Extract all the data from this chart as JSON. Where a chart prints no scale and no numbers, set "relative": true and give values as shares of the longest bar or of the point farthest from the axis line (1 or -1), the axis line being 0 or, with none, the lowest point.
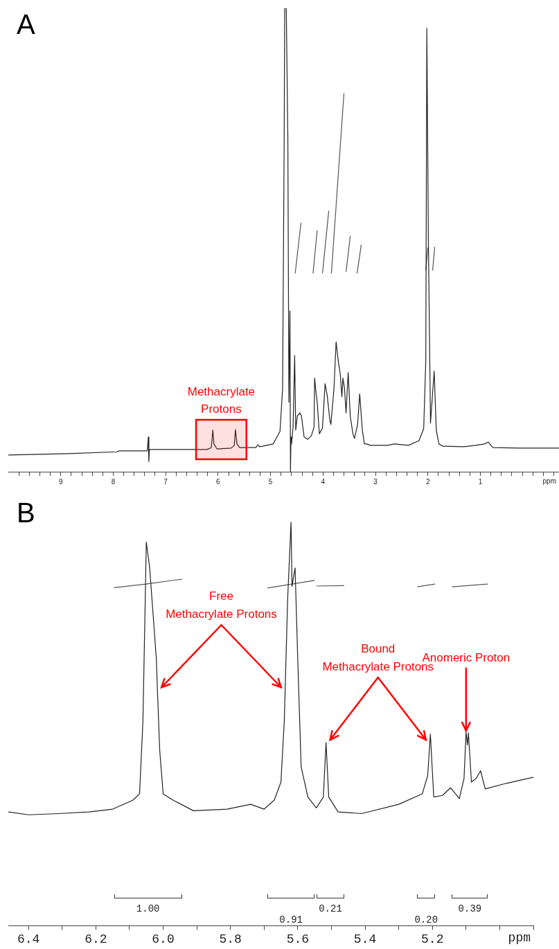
{
  "chart_data": [
    {
      "type": "line",
      "title": "A",
      "xlabel": "ppm",
      "relative": true,
      "grid": false,
      "xlim": [
        10.0,
        -0.5
      ],
      "xticks": [
        {
          "value": 9.8,
          "label": null
        },
        {
          "value": 9.6,
          "label": null
        },
        {
          "value": 9.4,
          "label": null
        },
        {
          "value": 9.2,
          "label": null
        },
        9,
        {
          "value": 8.8,
          "label": null
        },
        {
          "value": 8.6,
          "label": null
        },
        {
          "value": 8.4,
          "label": null
        },
        {
          "value": 8.2,
          "label": null
        },
        8,
        {
          "value": 7.8,
          "label": null
        },
        {
          "value": 7.6,
          "label": null
        },
        {
          "value": 7.4,
          "label": null
        },
        {
          "value": 7.2,
          "label": null
        },
        7,
        {
          "value": 6.8,
          "label": null
        },
        {
          "value": 6.6,
          "label": null
        },
        {
          "value": 6.4,
          "label": null
        },
        {
          "value": 6.2,
          "label": null
        },
        6,
        {
          "value": 5.8,
          "label": null
        },
        {
          "value": 5.6,
          "label": null
        },
        {
          "value": 5.4,
          "label": null
        },
        {
          "value": 5.2,
          "label": null
        },
        5,
        {
          "value": 4.8,
          "label": null
        },
        {
          "value": 4.6,
          "label": null
        },
        {
          "value": 4.4,
          "label": null
        },
        {
          "value": 4.2,
          "label": null
        },
        4,
        {
          "value": 3.8,
          "label": null
        },
        {
          "value": 3.6,
          "label": null
        },
        {
          "value": 3.4,
          "label": null
        },
        {
          "value": 3.2,
          "label": null
        },
        3,
        {
          "value": 2.8,
          "label": null
        },
        {
          "value": 2.6,
          "label": null
        },
        {
          "value": 2.4,
          "label": null
        },
        {
          "value": 2.2,
          "label": null
        },
        2,
        {
          "value": 1.8,
          "label": null
        },
        {
          "value": 1.6,
          "label": null
        },
        {
          "value": 1.4,
          "label": null
        },
        {
          "value": 1.2,
          "label": null
        },
        1,
        {
          "value": 0.8,
          "label": null
        },
        {
          "value": 0.6,
          "label": null
        },
        {
          "value": 0.4,
          "label": null
        },
        {
          "value": 0.2,
          "label": null
        },
        {
          "value": 0,
          "label": null
        },
        {
          "value": -0.2,
          "label": null
        },
        {
          "value": -0.4,
          "label": null
        }
      ],
      "bands": [
        {
          "axis": "x",
          "from": 6.42,
          "to": 5.46,
          "label": "Methacrylate\nProtons",
          "color": "#ff0000"
        }
      ],
      "series": [
        {
          "color": "#222222",
          "x": [
            10.0,
            8.85,
            7.93,
            7.89,
            7.35,
            7.33,
            7.32,
            7.31,
            6.47,
            6.21,
            6.13,
            6.1,
            6.08,
            6.02,
            5.75,
            5.69,
            5.67,
            5.64,
            5.59,
            5.28,
            5.24,
            5.21,
            5.15,
            4.95,
            4.82,
            4.77,
            4.74,
            4.73,
            4.7,
            4.67,
            4.65,
            4.63,
            4.62,
            4.61,
            4.6,
            4.57,
            4.54,
            4.52,
            4.49,
            4.44,
            4.41,
            4.36,
            4.29,
            4.22,
            4.17,
            4.16,
            4.13,
            4.11,
            4.07,
            4.01,
            3.96,
            3.92,
            3.87,
            3.85,
            3.79,
            3.75,
            3.71,
            3.67,
            3.64,
            3.62,
            3.59,
            3.56,
            3.52,
            3.48,
            3.43,
            3.4,
            3.34,
            3.3,
            3.25,
            3.21,
            3.17,
            3.1,
            2.77,
            2.64,
            2.37,
            2.17,
            2.08,
            2.04,
            2.02,
            1.99,
            1.95,
            1.88,
            1.84,
            1.79,
            1.71,
            1.31,
            1.09,
            0.92,
            0.85,
            0.76,
            0.26,
            -0.5
          ],
          "values": [
            0.036,
            0.039,
            0.043,
            0.045,
            0.045,
            0.075,
            0.022,
            0.048,
            0.048,
            0.048,
            0.052,
            0.09,
            0.06,
            0.049,
            0.051,
            0.057,
            0.091,
            0.06,
            0.052,
            0.052,
            0.058,
            0.054,
            0.055,
            0.06,
            0.087,
            0.18,
            0.719,
            1.0,
            1.0,
            0.719,
            0.15,
            0.347,
            0.0,
            0.075,
            0.06,
            0.097,
            0.251,
            0.09,
            0.12,
            0.127,
            0.12,
            0.075,
            0.07,
            0.078,
            0.097,
            0.202,
            0.168,
            0.15,
            0.082,
            0.094,
            0.19,
            0.165,
            0.112,
            0.102,
            0.18,
            0.28,
            0.24,
            0.21,
            0.162,
            0.202,
            0.18,
            0.127,
            0.214,
            0.12,
            0.082,
            0.072,
            0.102,
            0.168,
            0.09,
            0.06,
            0.06,
            0.057,
            0.057,
            0.06,
            0.057,
            0.067,
            0.093,
            0.24,
            0.957,
            0.494,
            0.105,
            0.217,
            0.09,
            0.06,
            0.055,
            0.054,
            0.057,
            0.06,
            0.064,
            0.052,
            0.051,
            0.051
          ]
        },
        {
          "color": "#555555",
          "x": [
            4.53,
            4.42
          ],
          "values": [
            0.428,
            0.537
          ]
        },
        {
          "color": "#555555",
          "x": [
            4.19,
            4.11
          ],
          "values": [
            0.428,
            0.521
          ]
        },
        {
          "color": "#555555",
          "x": [
            4.01,
            3.89
          ],
          "values": [
            0.428,
            0.563
          ]
        },
        {
          "color": "#555555",
          "x": [
            3.84,
            3.6
          ],
          "values": [
            0.428,
            0.817
          ]
        },
        {
          "color": "#555555",
          "x": [
            3.56,
            3.48
          ],
          "values": [
            0.431,
            0.509
          ]
        },
        {
          "color": "#555555",
          "x": [
            3.35,
            3.27
          ],
          "values": [
            0.428,
            0.49
          ]
        },
        {
          "color": "#555555",
          "x": [
            2.04,
            2.0
          ],
          "values": [
            0.434,
            0.484
          ]
        },
        {
          "color": "#555555",
          "x": [
            1.91,
            1.87
          ],
          "values": [
            0.434,
            0.485
          ]
        }
      ]
    },
    {
      "type": "line",
      "title": "B",
      "xlabel": "ppm",
      "relative": true,
      "grid": false,
      "xlim": [
        6.46,
        4.9
      ],
      "xticks": [
        6.4,
        {
          "value": 6.3,
          "label": null
        },
        6.2,
        {
          "value": 6.1,
          "label": null
        },
        {
          "value": 6,
          "label": "6.0"
        },
        {
          "value": 5.9,
          "label": null
        },
        5.8,
        {
          "value": 5.7,
          "label": null
        },
        5.6,
        {
          "value": 5.5,
          "label": null
        },
        5.4,
        {
          "value": 5.3,
          "label": null
        },
        5.2,
        {
          "value": 5.1,
          "label": null
        },
        {
          "value": 5,
          "label": null
        },
        {
          "value": 4.9,
          "label": null
        }
      ],
      "annotations": [
        {
          "text": "Free\nMethacrylate Protons",
          "x": 6.017,
          "y": 0.584
        },
        {
          "text": "Bound\nMethacrylate Protons",
          "x": 5.516,
          "y": 0.454
        },
        {
          "text": "Anomeric Proton",
          "x": 5.1,
          "y": 0.48
        },
        "1.00",
        "0.91",
        "0.21",
        "0.20",
        "0.39"
      ],
      "series": [
        {
          "color": "#222222",
          "x": [
            6.46,
            6.4,
            6.31,
            6.22,
            6.15,
            6.09,
            6.07,
            6.06,
            6.05,
            6.04,
            6.02,
            6.017,
            6.01,
            6.0,
            5.97,
            5.91,
            5.81,
            5.74,
            5.7,
            5.67,
            5.65,
            5.64,
            5.63,
            5.62,
            5.617,
            5.608,
            5.6,
            5.59,
            5.57,
            5.545,
            5.524,
            5.516,
            5.508,
            5.48,
            5.41,
            5.3,
            5.23,
            5.214,
            5.206,
            5.196,
            5.17,
            5.146,
            5.12,
            5.106,
            5.1,
            5.096,
            5.093,
            5.084,
            5.07,
            5.057,
            5.043,
            4.98,
            4.9
          ],
          "values": [
            0.282,
            0.275,
            0.278,
            0.282,
            0.289,
            0.311,
            0.327,
            0.508,
            0.951,
            0.887,
            0.659,
            0.584,
            0.433,
            0.327,
            0.311,
            0.285,
            0.289,
            0.301,
            0.289,
            0.311,
            0.356,
            0.508,
            0.811,
            1.0,
            0.841,
            0.887,
            0.659,
            0.394,
            0.319,
            0.292,
            0.319,
            0.454,
            0.319,
            0.282,
            0.278,
            0.301,
            0.327,
            0.372,
            0.475,
            0.319,
            0.323,
            0.342,
            0.315,
            0.365,
            0.48,
            0.448,
            0.478,
            0.356,
            0.365,
            0.384,
            0.339,
            0.353,
            0.368
          ]
        },
        {
          "color": "#555555",
          "x": [
            6.146,
            6.05,
            5.944
          ],
          "values": [
            0.838,
            0.847,
            0.859
          ]
        },
        {
          "color": "#555555",
          "x": [
            5.69,
            5.55
          ],
          "values": [
            0.837,
            0.856
          ]
        },
        {
          "color": "#555555",
          "x": [
            5.544,
            5.462
          ],
          "values": [
            0.842,
            0.843
          ]
        },
        {
          "color": "#555555",
          "x": [
            5.245,
            5.192
          ],
          "values": [
            0.84,
            0.847
          ]
        },
        {
          "color": "#555555",
          "x": [
            5.142,
            5.035
          ],
          "values": [
            0.84,
            0.847
          ]
        }
      ]
    }
  ]
}
